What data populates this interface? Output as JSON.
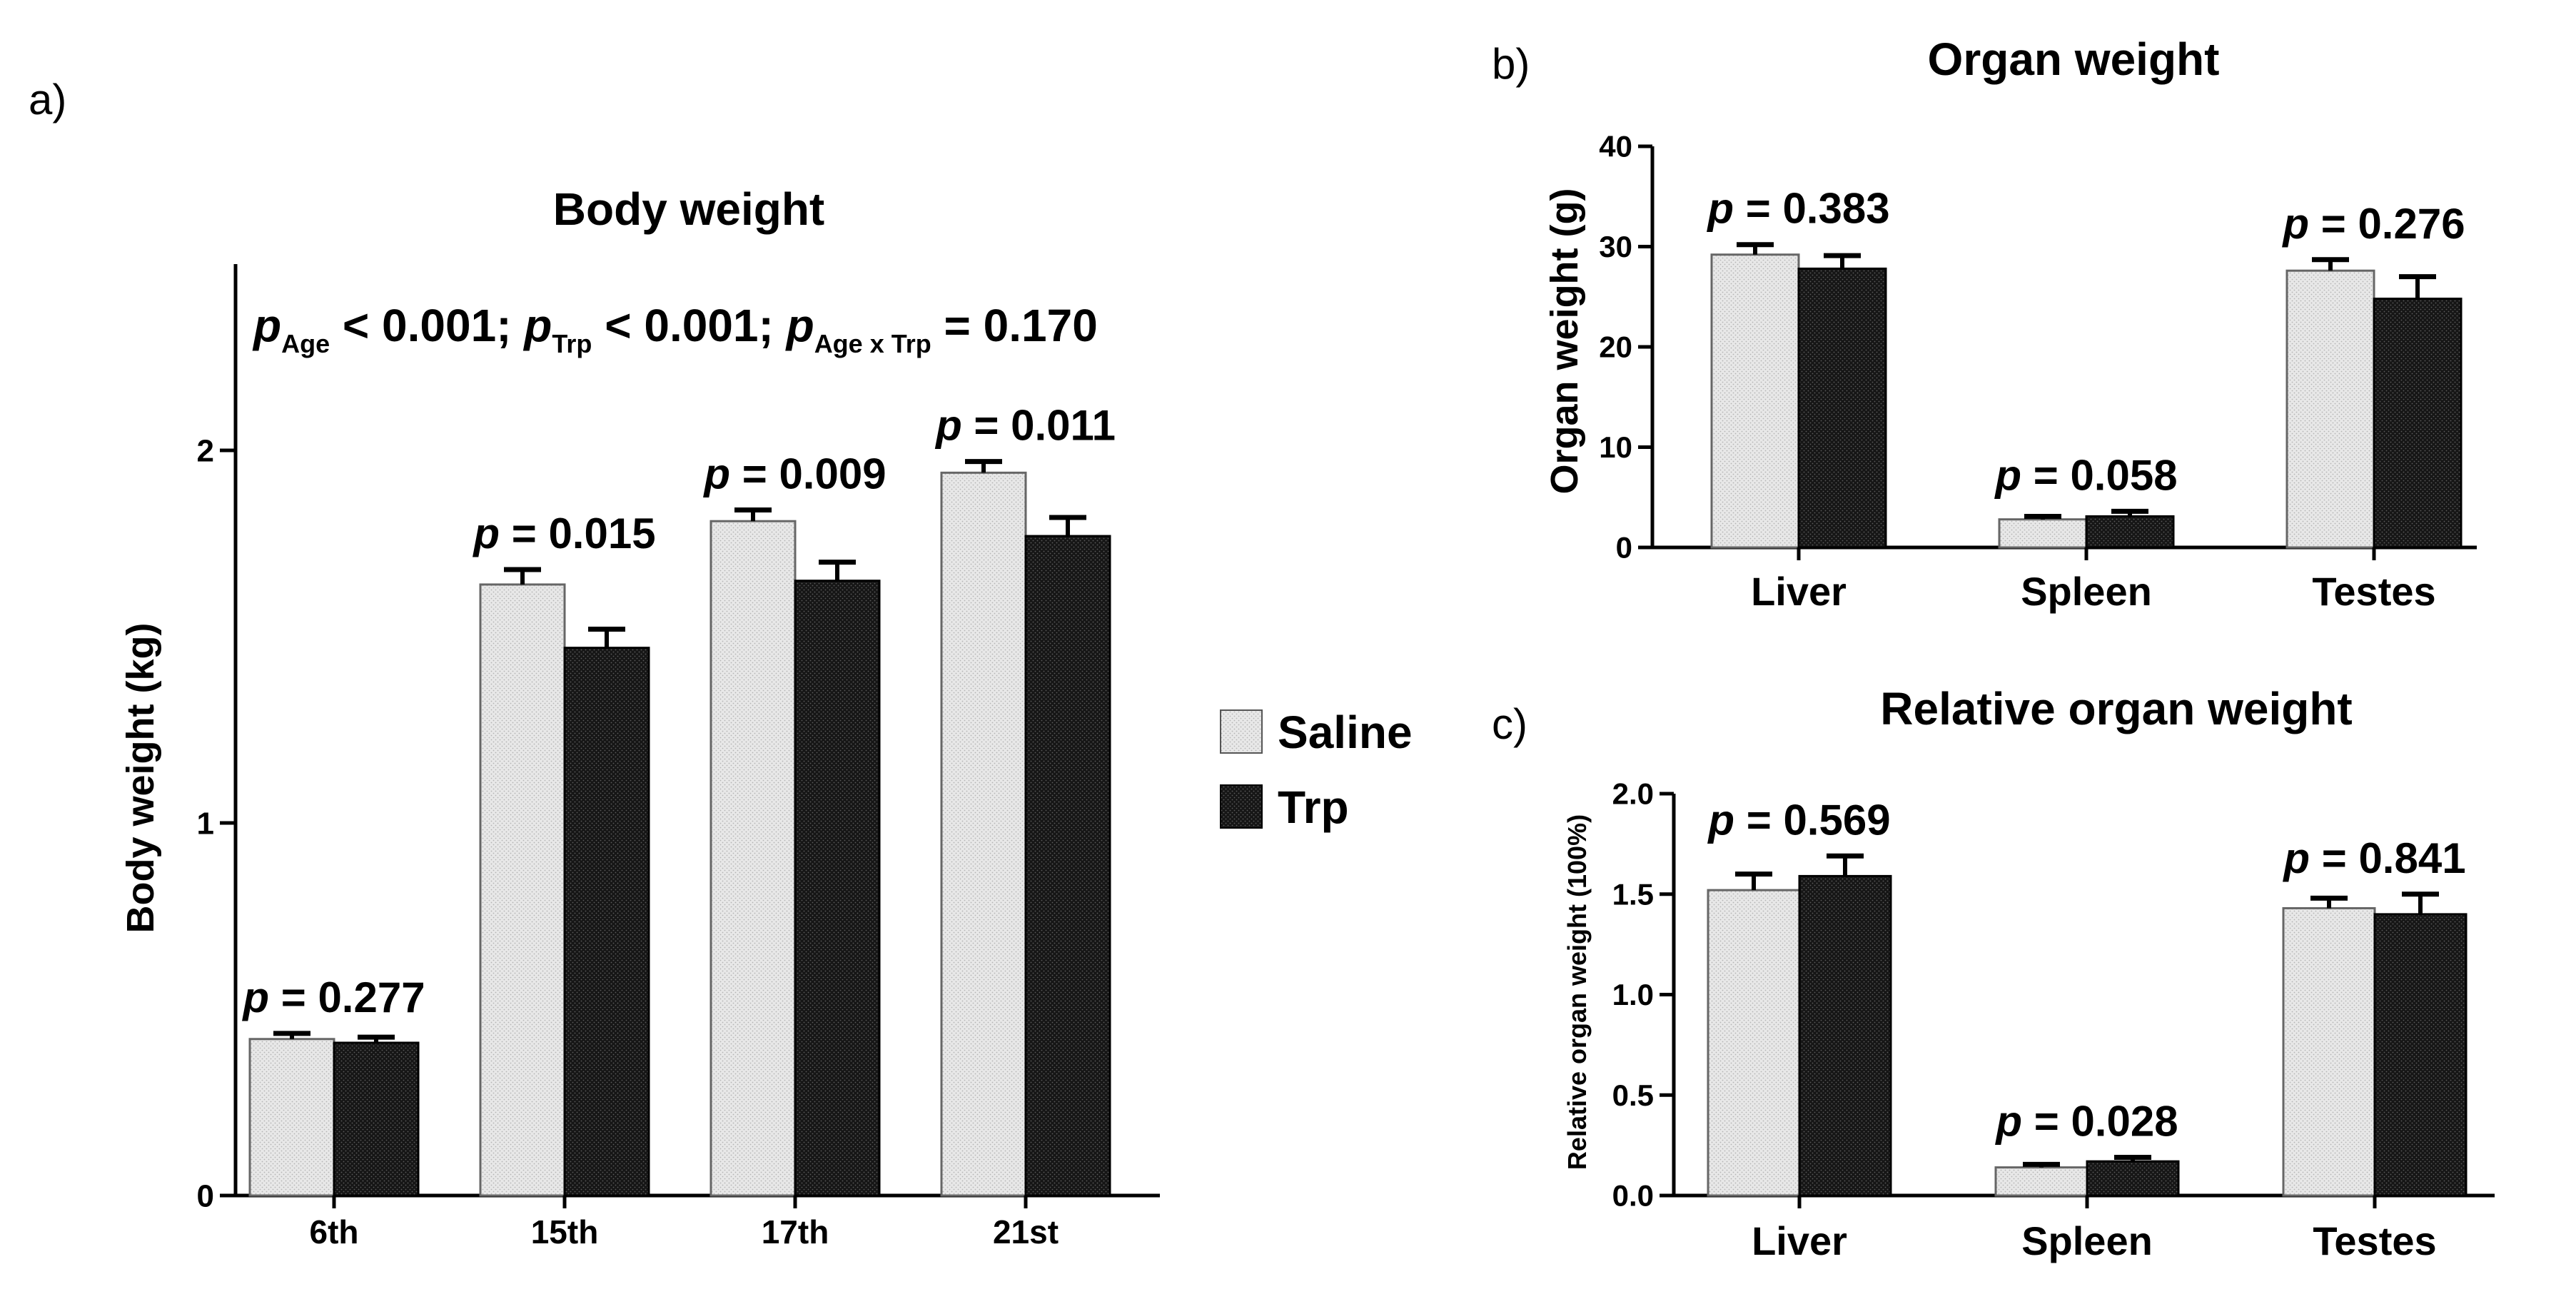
{
  "panels": {
    "a": "a)",
    "b": "b)",
    "c": "c)"
  },
  "legend": [
    "Saline",
    "Trp"
  ],
  "colors": {
    "saline_fill": "#e8e8e8",
    "trp_fill": "#161616",
    "axis": "#000000"
  },
  "chart_data": [
    {
      "type": "bar",
      "title": "Body weight",
      "xlabel": "",
      "ylabel": "Body weight (kg)",
      "ylim": [
        0,
        2.5
      ],
      "yticks": [
        0,
        1,
        2
      ],
      "ytick_labels": [
        "0",
        "1",
        "2"
      ],
      "categories": [
        "6th",
        "15th",
        "17th",
        "21st"
      ],
      "series": [
        {
          "name": "Saline",
          "values": [
            0.42,
            1.64,
            1.81,
            1.94
          ],
          "errors": [
            0.015,
            0.04,
            0.03,
            0.03
          ]
        },
        {
          "name": "Trp",
          "values": [
            0.41,
            1.47,
            1.65,
            1.77
          ],
          "errors": [
            0.015,
            0.05,
            0.05,
            0.05
          ]
        }
      ],
      "p_labels": [
        "0.277",
        "0.015",
        "0.009",
        "0.011"
      ],
      "stats": {
        "sub_age": "Age",
        "part1": " < 0.001; ",
        "sub_trp": "Trp",
        "part2": " < 0.001; ",
        "sub_interaction": "Age x Trp",
        "part3": " = 0.170"
      }
    },
    {
      "type": "bar",
      "title": "Organ weight",
      "xlabel": "",
      "ylabel": "Organ weight (g)",
      "ylim": [
        0,
        40
      ],
      "yticks": [
        0,
        10,
        20,
        30,
        40
      ],
      "ytick_labels": [
        "0",
        "10",
        "20",
        "30",
        "40"
      ],
      "categories": [
        "Liver",
        "Spleen",
        "Testes"
      ],
      "series": [
        {
          "name": "Saline",
          "values": [
            29.2,
            2.8,
            27.6
          ],
          "errors": [
            1.0,
            0.3,
            1.1
          ]
        },
        {
          "name": "Trp",
          "values": [
            27.8,
            3.1,
            24.8
          ],
          "errors": [
            1.3,
            0.5,
            2.2
          ]
        }
      ],
      "p_labels": [
        "0.383",
        "0.058",
        "0.276"
      ]
    },
    {
      "type": "bar",
      "title": "Relative organ weight",
      "xlabel": "",
      "ylabel": "Relative organ weight (100%)",
      "ylim": [
        0,
        2.0
      ],
      "yticks": [
        0,
        0.5,
        1.0,
        1.5,
        2.0
      ],
      "ytick_labels": [
        "0.0",
        "0.5",
        "1.0",
        "1.5",
        "2.0"
      ],
      "categories": [
        "Liver",
        "Spleen",
        "Testes"
      ],
      "series": [
        {
          "name": "Saline",
          "values": [
            1.52,
            0.14,
            1.43
          ],
          "errors": [
            0.08,
            0.015,
            0.05
          ]
        },
        {
          "name": "Trp",
          "values": [
            1.59,
            0.17,
            1.4
          ],
          "errors": [
            0.1,
            0.02,
            0.1
          ]
        }
      ],
      "p_labels": [
        "0.569",
        "0.028",
        "0.841"
      ]
    }
  ]
}
